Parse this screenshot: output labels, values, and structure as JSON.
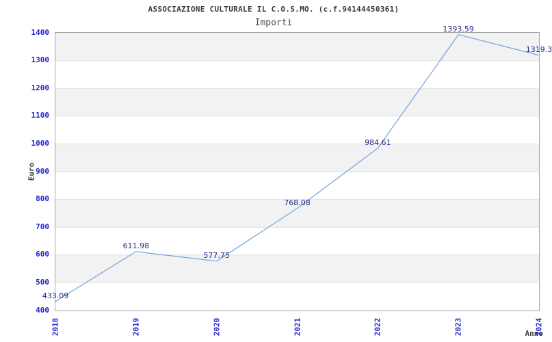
{
  "header": {
    "title": "ASSOCIAZIONE CULTURALE IL C.O.S.MO. (c.f.94144450361)",
    "subtitle": "Importi"
  },
  "chart_data": {
    "type": "line",
    "title": "ASSOCIAZIONE CULTURALE IL C.O.S.MO. (c.f.94144450361)",
    "subtitle": "Importi",
    "xlabel": "Anno",
    "ylabel": "Euro",
    "x": [
      2018,
      2019,
      2020,
      2021,
      2022,
      2023,
      2024
    ],
    "x_tick_labels": [
      "2018",
      "2019",
      "2020",
      "2021",
      "2022",
      "2023",
      "2024"
    ],
    "values": [
      433.09,
      611.98,
      577.75,
      768.08,
      984.61,
      1393.59,
      1319.3
    ],
    "point_labels": [
      "433.09",
      "611.98",
      "577.75",
      "768.08",
      "984.61",
      "1393.59",
      "1319.3"
    ],
    "ylim": [
      400,
      1400
    ],
    "ytick_step": 100,
    "y_tick_labels": [
      "400",
      "500",
      "600",
      "700",
      "800",
      "900",
      "1000",
      "1100",
      "1200",
      "1300",
      "1400"
    ],
    "grid": "horizontal gridlines with alternating shaded bands",
    "legend": "none",
    "markers": "none",
    "colors": {
      "line": "#6fa3dc",
      "tick_labels": "#2323cf",
      "point_labels": "#26268b",
      "band_fill": "#f2f2f2",
      "gridline": "#e1e1e1",
      "plot_border": "#a3a3a3",
      "title_text": "#3a3a3a"
    }
  }
}
